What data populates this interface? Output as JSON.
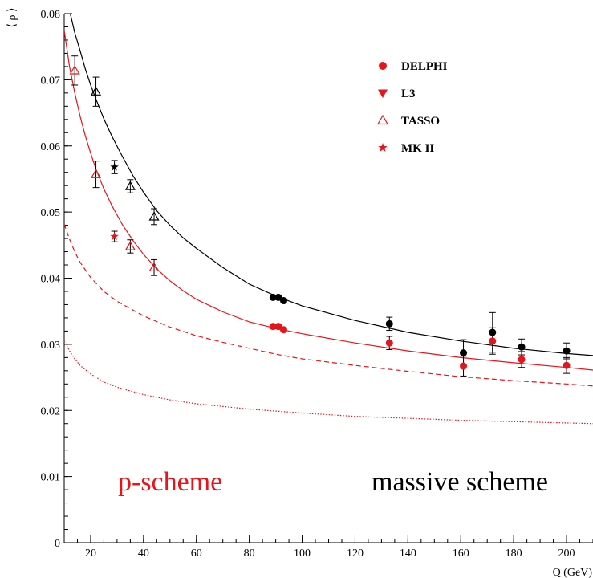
{
  "chart_data": {
    "type": "scatter",
    "xlabel": "Q (GeV)",
    "ylabel": "⟨ ρ ⟩",
    "xlim": [
      10,
      210
    ],
    "ylim": [
      0,
      0.08
    ],
    "x_ticks": [
      20,
      40,
      60,
      80,
      100,
      120,
      140,
      160,
      180,
      200
    ],
    "y_ticks": [
      0,
      0.01,
      0.02,
      0.03,
      0.04,
      0.05,
      0.06,
      0.07,
      0.08
    ],
    "x_tick_labels": [
      "20",
      "40",
      "60",
      "80",
      "100",
      "120",
      "140",
      "160",
      "180",
      "200"
    ],
    "y_tick_labels": [
      "0",
      "0.01",
      "0.02",
      "0.03",
      "0.04",
      "0.05",
      "0.06",
      "0.07",
      "0.08"
    ],
    "legend": {
      "placement": "top-right",
      "entries": [
        {
          "label": "DELPHI",
          "marker": "filled-circle",
          "color": "#e8141b"
        },
        {
          "label": "L3",
          "marker": "filled-triangle-down",
          "color": "#e8141b"
        },
        {
          "label": "TASSO",
          "marker": "open-triangle-up",
          "color": "#e8141b"
        },
        {
          "label": "MK II",
          "marker": "star",
          "color": "#e8141b"
        }
      ]
    },
    "annotations": [
      {
        "text": "p-scheme",
        "color": "#e8141b"
      },
      {
        "text": "massive scheme",
        "color": "#000000"
      }
    ],
    "curves": [
      {
        "color": "#000000",
        "style": "solid",
        "x": [
          12,
          14,
          16,
          18,
          20,
          22,
          25,
          28,
          32,
          36,
          40,
          45,
          50,
          55,
          60,
          70,
          80,
          90,
          100,
          120,
          140,
          160,
          180,
          200,
          210
        ],
        "y": [
          0.0805,
          0.0771,
          0.0744,
          0.0716,
          0.0692,
          0.0671,
          0.0641,
          0.0615,
          0.0584,
          0.0555,
          0.053,
          0.0502,
          0.048,
          0.0461,
          0.0445,
          0.0416,
          0.0391,
          0.0373,
          0.0358,
          0.0336,
          0.0318,
          0.0305,
          0.0294,
          0.0286,
          0.0283
        ]
      },
      {
        "color": "#e8141b",
        "style": "solid",
        "x": [
          10,
          12,
          14,
          16,
          18,
          20,
          22,
          25,
          28,
          32,
          36,
          40,
          45,
          50,
          55,
          60,
          70,
          80,
          90,
          100,
          120,
          140,
          160,
          180,
          200,
          210
        ],
        "y": [
          0.0775,
          0.072,
          0.068,
          0.0645,
          0.0615,
          0.0589,
          0.0565,
          0.0535,
          0.051,
          0.0481,
          0.0457,
          0.0436,
          0.0414,
          0.0396,
          0.0381,
          0.0368,
          0.0349,
          0.0334,
          0.0324,
          0.0316,
          0.0302,
          0.029,
          0.028,
          0.0272,
          0.0265,
          0.0261
        ]
      },
      {
        "color": "#e8141b",
        "style": "dashed",
        "x": [
          10,
          12,
          14,
          16,
          20,
          25,
          30,
          40,
          50,
          60,
          70,
          80,
          90,
          100,
          120,
          140,
          160,
          180,
          200,
          210
        ],
        "y": [
          0.0482,
          0.0459,
          0.044,
          0.0424,
          0.0401,
          0.038,
          0.0365,
          0.0343,
          0.0326,
          0.0313,
          0.0303,
          0.0294,
          0.0285,
          0.0278,
          0.0268,
          0.0259,
          0.0251,
          0.0245,
          0.024,
          0.0237
        ]
      },
      {
        "color": "#e8141b",
        "style": "dotted",
        "x": [
          10,
          12,
          14,
          16,
          20,
          25,
          30,
          40,
          50,
          60,
          70,
          80,
          90,
          100,
          120,
          140,
          160,
          180,
          200,
          210
        ],
        "y": [
          0.0305,
          0.029,
          0.0278,
          0.0268,
          0.0255,
          0.0243,
          0.0235,
          0.0224,
          0.0216,
          0.021,
          0.0206,
          0.0202,
          0.0199,
          0.0196,
          0.0191,
          0.0188,
          0.0185,
          0.0183,
          0.0181,
          0.018
        ]
      }
    ],
    "series": [
      {
        "marker": "open-triangle-up",
        "color": "#000000",
        "points": [
          {
            "x": 22,
            "y": 0.0682,
            "err": 0.0022
          },
          {
            "x": 35,
            "y": 0.0539,
            "err": 0.001
          },
          {
            "x": 44,
            "y": 0.0493,
            "err": 0.0012
          }
        ]
      },
      {
        "marker": "star",
        "color": "#000000",
        "points": [
          {
            "x": 29,
            "y": 0.0568,
            "err": 0.001
          }
        ]
      },
      {
        "marker": "filled-circle",
        "color": "#000000",
        "points": [
          {
            "x": 89,
            "y": 0.0371,
            "err": 0.0003
          },
          {
            "x": 91,
            "y": 0.0371,
            "err": 0.0003
          },
          {
            "x": 93,
            "y": 0.0366,
            "err": 0.0003
          },
          {
            "x": 133,
            "y": 0.0331,
            "err": 0.001
          },
          {
            "x": 161,
            "y": 0.0287,
            "err": 0.002
          },
          {
            "x": 172,
            "y": 0.0318,
            "err": 0.003
          },
          {
            "x": 183,
            "y": 0.0296,
            "err": 0.0012
          },
          {
            "x": 200,
            "y": 0.029,
            "err": 0.0012
          }
        ]
      },
      {
        "marker": "open-triangle-up",
        "color": "#e8141b",
        "points": [
          {
            "x": 14,
            "y": 0.0714,
            "err": 0.0022
          },
          {
            "x": 22,
            "y": 0.0557,
            "err": 0.002
          },
          {
            "x": 35,
            "y": 0.0448,
            "err": 0.001
          },
          {
            "x": 44,
            "y": 0.0416,
            "err": 0.0012
          }
        ]
      },
      {
        "marker": "star",
        "color": "#e8141b",
        "points": [
          {
            "x": 29,
            "y": 0.0463,
            "err": 0.0008
          }
        ]
      },
      {
        "marker": "filled-circle",
        "color": "#e8141b",
        "points": [
          {
            "x": 89,
            "y": 0.0327,
            "err": 0.0003
          },
          {
            "x": 91,
            "y": 0.0327,
            "err": 0.0003
          },
          {
            "x": 93,
            "y": 0.0322,
            "err": 0.0003
          },
          {
            "x": 133,
            "y": 0.0302,
            "err": 0.001
          },
          {
            "x": 161,
            "y": 0.0267,
            "err": 0.0015
          },
          {
            "x": 172,
            "y": 0.0305,
            "err": 0.002
          },
          {
            "x": 183,
            "y": 0.0277,
            "err": 0.0012
          },
          {
            "x": 200,
            "y": 0.0268,
            "err": 0.0012
          }
        ]
      }
    ]
  }
}
